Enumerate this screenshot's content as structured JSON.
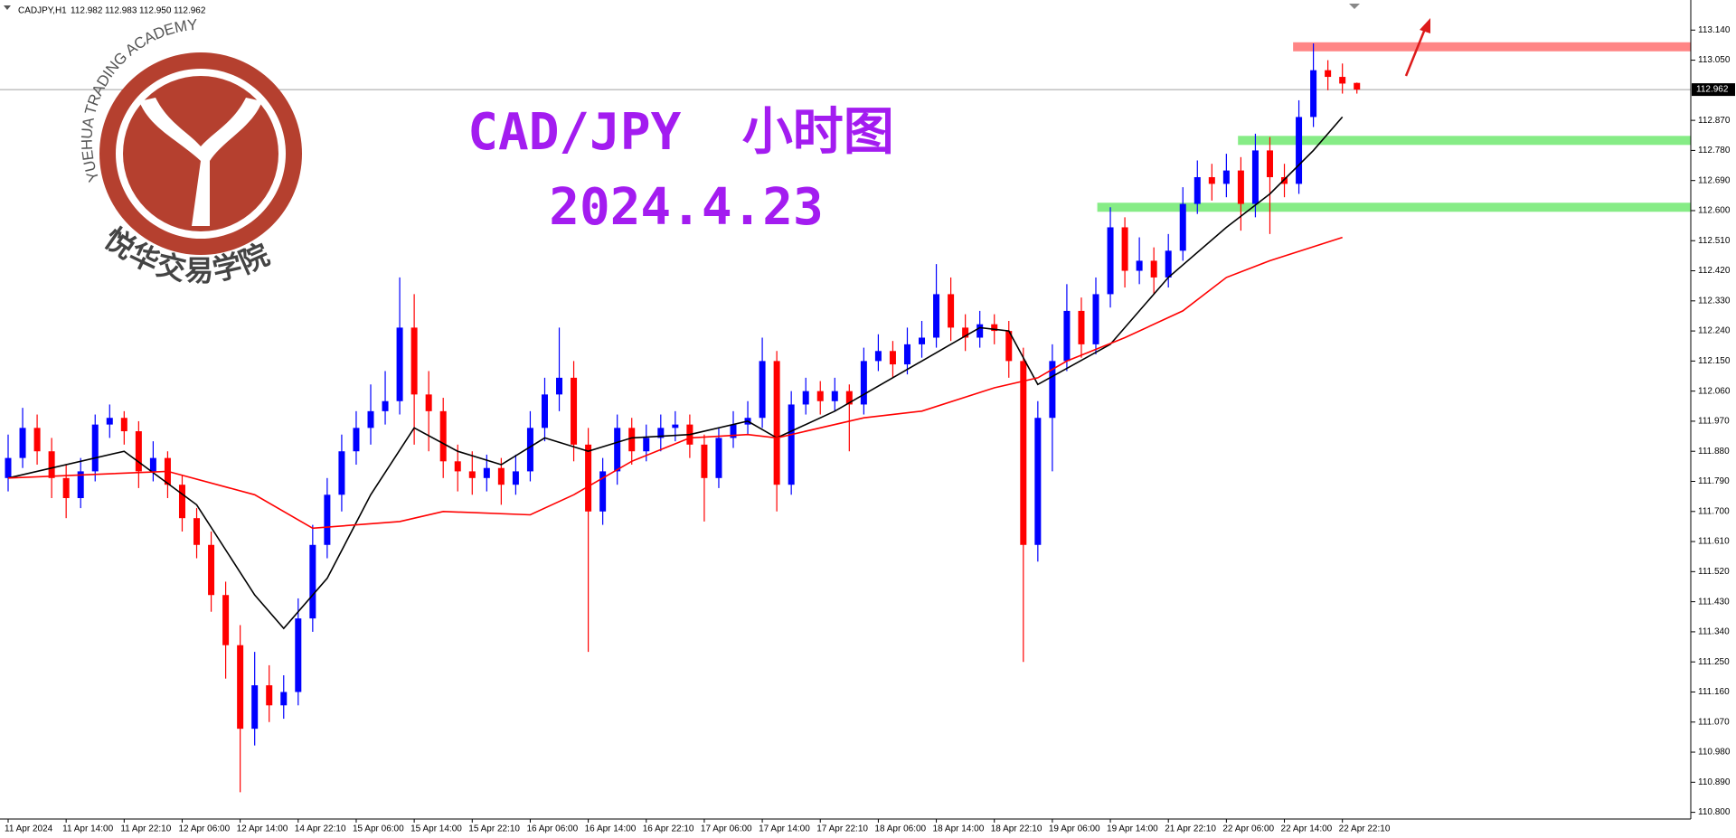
{
  "header": {
    "symbol": "CADJPY,H1",
    "values": [
      "112.982",
      "112.983",
      "112.950",
      "112.962"
    ]
  },
  "logo": {
    "ring_text": "YUEHUA TRADING ACADEMY",
    "name": "悦华交易学院"
  },
  "chart_data": {
    "type": "candlestick",
    "title": "CAD/JPY  小时图",
    "subtitle": "2024.4.23",
    "up_color": "#0000ff",
    "down_color": "#ff0000",
    "categories": [
      "11 Apr 2024",
      null,
      null,
      null,
      "11 Apr 14:00",
      null,
      null,
      null,
      "11 Apr 22:10",
      null,
      null,
      null,
      "12 Apr 06:00",
      null,
      null,
      null,
      "12 Apr 14:00",
      null,
      null,
      null,
      "14 Apr 22:10",
      null,
      null,
      null,
      "15 Apr 06:00",
      null,
      null,
      null,
      "15 Apr 14:00",
      null,
      null,
      null,
      "15 Apr 22:10",
      null,
      null,
      null,
      "16 Apr 06:00",
      null,
      null,
      null,
      "16 Apr 14:00",
      null,
      null,
      null,
      "16 Apr 22:10",
      null,
      null,
      null,
      "17 Apr 06:00",
      null,
      null,
      null,
      "17 Apr 14:00",
      null,
      null,
      null,
      "17 Apr 22:10",
      null,
      null,
      null,
      "18 Apr 06:00",
      null,
      null,
      null,
      "18 Apr 14:00",
      null,
      null,
      null,
      "18 Apr 22:10",
      null,
      null,
      null,
      "19 Apr 06:00",
      null,
      null,
      null,
      "19 Apr 14:00",
      null,
      null,
      null,
      "21 Apr 22:10",
      null,
      null,
      null,
      "22 Apr 06:00",
      null,
      null,
      null,
      "22 Apr 14:00",
      null,
      null,
      null,
      "22 Apr 22:10",
      null
    ],
    "ohlc": [
      [
        111.8,
        111.93,
        111.76,
        111.86
      ],
      [
        111.86,
        112.01,
        111.83,
        111.95
      ],
      [
        111.95,
        111.99,
        111.84,
        111.88
      ],
      [
        111.88,
        111.92,
        111.74,
        111.8
      ],
      [
        111.8,
        111.84,
        111.68,
        111.74
      ],
      [
        111.74,
        111.86,
        111.71,
        111.82
      ],
      [
        111.82,
        111.99,
        111.79,
        111.96
      ],
      [
        111.96,
        112.02,
        111.92,
        111.98
      ],
      [
        111.98,
        112.0,
        111.9,
        111.94
      ],
      [
        111.94,
        111.97,
        111.77,
        111.82
      ],
      [
        111.82,
        111.91,
        111.79,
        111.86
      ],
      [
        111.86,
        111.88,
        111.74,
        111.78
      ],
      [
        111.78,
        111.81,
        111.64,
        111.68
      ],
      [
        111.68,
        111.71,
        111.56,
        111.6
      ],
      [
        111.6,
        111.64,
        111.4,
        111.45
      ],
      [
        111.45,
        111.49,
        111.2,
        111.3
      ],
      [
        111.3,
        111.36,
        110.86,
        111.05
      ],
      [
        111.05,
        111.28,
        111.0,
        111.18
      ],
      [
        111.18,
        111.24,
        111.07,
        111.12
      ],
      [
        111.12,
        111.21,
        111.08,
        111.16
      ],
      [
        111.16,
        111.44,
        111.12,
        111.38
      ],
      [
        111.38,
        111.66,
        111.34,
        111.6
      ],
      [
        111.6,
        111.8,
        111.56,
        111.75
      ],
      [
        111.75,
        111.93,
        111.7,
        111.88
      ],
      [
        111.88,
        112.0,
        111.84,
        111.95
      ],
      [
        111.95,
        112.08,
        111.9,
        112.0
      ],
      [
        112.0,
        112.12,
        111.96,
        112.03
      ],
      [
        112.03,
        112.4,
        111.99,
        112.25
      ],
      [
        112.25,
        112.35,
        111.9,
        112.05
      ],
      [
        112.05,
        112.12,
        111.88,
        112.0
      ],
      [
        112.0,
        112.04,
        111.8,
        111.85
      ],
      [
        111.85,
        111.9,
        111.76,
        111.82
      ],
      [
        111.82,
        111.88,
        111.75,
        111.8
      ],
      [
        111.8,
        111.87,
        111.76,
        111.83
      ],
      [
        111.83,
        111.86,
        111.72,
        111.78
      ],
      [
        111.78,
        111.87,
        111.75,
        111.82
      ],
      [
        111.82,
        112.0,
        111.79,
        111.95
      ],
      [
        111.95,
        112.1,
        111.91,
        112.05
      ],
      [
        112.05,
        112.25,
        112.0,
        112.1
      ],
      [
        112.1,
        112.15,
        111.85,
        111.9
      ],
      [
        111.9,
        111.95,
        111.28,
        111.7
      ],
      [
        111.7,
        111.86,
        111.66,
        111.82
      ],
      [
        111.82,
        111.99,
        111.78,
        111.95
      ],
      [
        111.95,
        111.98,
        111.84,
        111.88
      ],
      [
        111.88,
        111.96,
        111.85,
        111.92
      ],
      [
        111.92,
        111.99,
        111.88,
        111.95
      ],
      [
        111.95,
        112.0,
        111.91,
        111.96
      ],
      [
        111.96,
        111.99,
        111.86,
        111.9
      ],
      [
        111.9,
        111.93,
        111.67,
        111.8
      ],
      [
        111.8,
        111.95,
        111.77,
        111.92
      ],
      [
        111.92,
        112.0,
        111.89,
        111.96
      ],
      [
        111.96,
        112.03,
        111.93,
        111.98
      ],
      [
        111.98,
        112.22,
        111.95,
        112.15
      ],
      [
        112.15,
        112.18,
        111.7,
        111.78
      ],
      [
        111.78,
        112.06,
        111.75,
        112.02
      ],
      [
        112.02,
        112.1,
        111.99,
        112.06
      ],
      [
        112.06,
        112.09,
        111.99,
        112.03
      ],
      [
        112.03,
        112.1,
        112.0,
        112.06
      ],
      [
        112.06,
        112.08,
        111.88,
        112.02
      ],
      [
        112.02,
        112.19,
        111.99,
        112.15
      ],
      [
        112.15,
        112.23,
        112.12,
        112.18
      ],
      [
        112.18,
        112.21,
        112.1,
        112.14
      ],
      [
        112.14,
        112.25,
        112.11,
        112.2
      ],
      [
        112.2,
        112.27,
        112.16,
        112.22
      ],
      [
        112.22,
        112.44,
        112.19,
        112.35
      ],
      [
        112.35,
        112.4,
        112.21,
        112.25
      ],
      [
        112.25,
        112.29,
        112.18,
        112.22
      ],
      [
        112.22,
        112.3,
        112.19,
        112.26
      ],
      [
        112.26,
        112.29,
        112.2,
        112.24
      ],
      [
        112.24,
        112.27,
        112.1,
        112.15
      ],
      [
        112.15,
        112.19,
        111.25,
        111.6
      ],
      [
        111.6,
        112.03,
        111.55,
        111.98
      ],
      [
        111.98,
        112.2,
        111.82,
        112.15
      ],
      [
        112.15,
        112.38,
        112.12,
        112.3
      ],
      [
        112.3,
        112.34,
        112.16,
        112.2
      ],
      [
        112.2,
        112.4,
        112.17,
        112.35
      ],
      [
        112.35,
        112.61,
        112.31,
        112.55
      ],
      [
        112.55,
        112.58,
        112.37,
        112.42
      ],
      [
        112.42,
        112.52,
        112.38,
        112.45
      ],
      [
        112.45,
        112.49,
        112.35,
        112.4
      ],
      [
        112.4,
        112.53,
        112.37,
        112.48
      ],
      [
        112.48,
        112.67,
        112.45,
        112.62
      ],
      [
        112.62,
        112.75,
        112.59,
        112.7
      ],
      [
        112.7,
        112.74,
        112.63,
        112.68
      ],
      [
        112.68,
        112.77,
        112.64,
        112.72
      ],
      [
        112.72,
        112.76,
        112.54,
        112.62
      ],
      [
        112.62,
        112.83,
        112.58,
        112.78
      ],
      [
        112.78,
        112.82,
        112.53,
        112.7
      ],
      [
        112.7,
        112.74,
        112.64,
        112.68
      ],
      [
        112.68,
        112.93,
        112.65,
        112.88
      ],
      [
        112.88,
        113.1,
        112.85,
        113.02
      ],
      [
        113.02,
        113.05,
        112.96,
        113.0
      ],
      [
        113.0,
        113.04,
        112.95,
        112.98
      ],
      [
        112.982,
        112.983,
        112.95,
        112.962
      ]
    ],
    "lines": [
      {
        "color": "#000000",
        "x": [
          0,
          8,
          13,
          17,
          19,
          22,
          25,
          28,
          31,
          34,
          37,
          40,
          43,
          47,
          51,
          53,
          57,
          63,
          67,
          69,
          71,
          76,
          80,
          84,
          87,
          90,
          92
        ],
        "values": [
          111.8,
          111.88,
          111.72,
          111.45,
          111.35,
          111.5,
          111.75,
          111.95,
          111.88,
          111.84,
          111.92,
          111.88,
          111.92,
          111.93,
          111.97,
          111.92,
          112.0,
          112.15,
          112.25,
          112.24,
          112.08,
          112.2,
          112.4,
          112.55,
          112.65,
          112.78,
          112.88
        ]
      },
      {
        "color": "#ff0000",
        "x": [
          0,
          11,
          17,
          21,
          27,
          30,
          36,
          39,
          43,
          47,
          51,
          53,
          59,
          63,
          68,
          71,
          73,
          77,
          81,
          84,
          87,
          92
        ],
        "values": [
          111.8,
          111.82,
          111.75,
          111.65,
          111.67,
          111.7,
          111.69,
          111.75,
          111.85,
          111.92,
          111.93,
          111.92,
          111.98,
          112.0,
          112.07,
          112.1,
          112.15,
          112.22,
          112.3,
          112.4,
          112.45,
          112.52
        ]
      }
    ],
    "levels": [
      {
        "value": 113.09,
        "color": "#ff8585",
        "from": 88.6
      },
      {
        "value": 112.81,
        "color": "#86ec86",
        "from": 84.8
      },
      {
        "value": 112.61,
        "color": "#86ec86",
        "from": 75.1
      }
    ],
    "current_price": 112.962,
    "ylim": [
      110.78,
      113.23
    ],
    "yticks": [
      {
        "value": 113.14,
        "label": "113.140"
      },
      {
        "value": 113.05,
        "label": "113.050"
      },
      {
        "value": 112.87,
        "label": "112.870"
      },
      {
        "value": 112.78,
        "label": "112.780"
      },
      {
        "value": 112.69,
        "label": "112.690"
      },
      {
        "value": 112.6,
        "label": "112.600"
      },
      {
        "value": 112.51,
        "label": "112.510"
      },
      {
        "value": 112.42,
        "label": "112.420"
      },
      {
        "value": 112.33,
        "label": "112.330"
      },
      {
        "value": 112.24,
        "label": "112.240"
      },
      {
        "value": 112.15,
        "label": "112.150"
      },
      {
        "value": 112.06,
        "label": "112.060"
      },
      {
        "value": 111.97,
        "label": "111.970"
      },
      {
        "value": 111.88,
        "label": "111.880"
      },
      {
        "value": 111.79,
        "label": "111.790"
      },
      {
        "value": 111.7,
        "label": "111.700"
      },
      {
        "value": 111.61,
        "label": "111.610"
      },
      {
        "value": 111.52,
        "label": "111.520"
      },
      {
        "value": 111.43,
        "label": "111.430"
      },
      {
        "value": 111.34,
        "label": "111.340"
      },
      {
        "value": 111.25,
        "label": "111.250"
      },
      {
        "value": 111.16,
        "label": "111.160"
      },
      {
        "value": 111.07,
        "label": "111.070"
      },
      {
        "value": 110.98,
        "label": "110.980"
      },
      {
        "value": 110.89,
        "label": "110.890"
      },
      {
        "value": 110.8,
        "label": "110.800"
      }
    ]
  }
}
